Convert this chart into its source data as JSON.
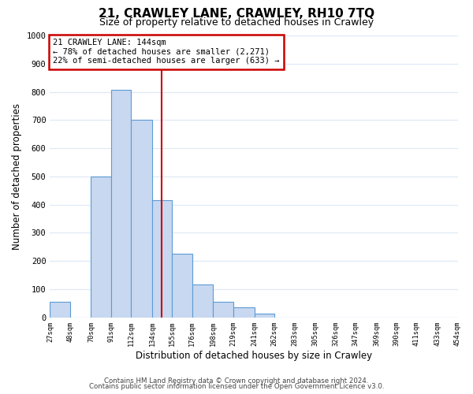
{
  "title": "21, CRAWLEY LANE, CRAWLEY, RH10 7TQ",
  "subtitle": "Size of property relative to detached houses in Crawley",
  "xlabel": "Distribution of detached houses by size in Crawley",
  "ylabel": "Number of detached properties",
  "bar_left_edges": [
    27,
    48,
    70,
    91,
    112,
    134,
    155,
    176,
    198,
    219,
    241,
    262,
    283,
    305,
    326,
    347,
    369,
    390,
    411,
    433
  ],
  "bar_widths": [
    21,
    22,
    21,
    21,
    22,
    21,
    21,
    22,
    21,
    22,
    21,
    21,
    22,
    21,
    21,
    22,
    21,
    21,
    22,
    21
  ],
  "bar_heights": [
    55,
    0,
    500,
    808,
    700,
    415,
    225,
    115,
    55,
    35,
    12,
    0,
    0,
    0,
    0,
    0,
    0,
    0,
    0,
    0
  ],
  "bar_color": "#c8d8f0",
  "bar_edge_color": "#5b9bd5",
  "property_line_x": 144,
  "property_line_color": "#cc0000",
  "annotation_text": "21 CRAWLEY LANE: 144sqm\n← 78% of detached houses are smaller (2,271)\n22% of semi-detached houses are larger (633) →",
  "annotation_box_color": "#ffffff",
  "annotation_box_edge_color": "#cc0000",
  "ylim": [
    0,
    1000
  ],
  "xlim": [
    27,
    454
  ],
  "tick_labels": [
    "27sqm",
    "48sqm",
    "70sqm",
    "91sqm",
    "112sqm",
    "134sqm",
    "155sqm",
    "176sqm",
    "198sqm",
    "219sqm",
    "241sqm",
    "262sqm",
    "283sqm",
    "305sqm",
    "326sqm",
    "347sqm",
    "369sqm",
    "390sqm",
    "411sqm",
    "433sqm",
    "454sqm"
  ],
  "tick_positions": [
    27,
    48,
    70,
    91,
    112,
    134,
    155,
    176,
    198,
    219,
    241,
    262,
    283,
    305,
    326,
    347,
    369,
    390,
    411,
    433,
    454
  ],
  "yticks": [
    0,
    100,
    200,
    300,
    400,
    500,
    600,
    700,
    800,
    900,
    1000
  ],
  "footer_line1": "Contains HM Land Registry data © Crown copyright and database right 2024.",
  "footer_line2": "Contains public sector information licensed under the Open Government Licence v3.0.",
  "background_color": "#ffffff",
  "grid_color": "#dce8f5"
}
